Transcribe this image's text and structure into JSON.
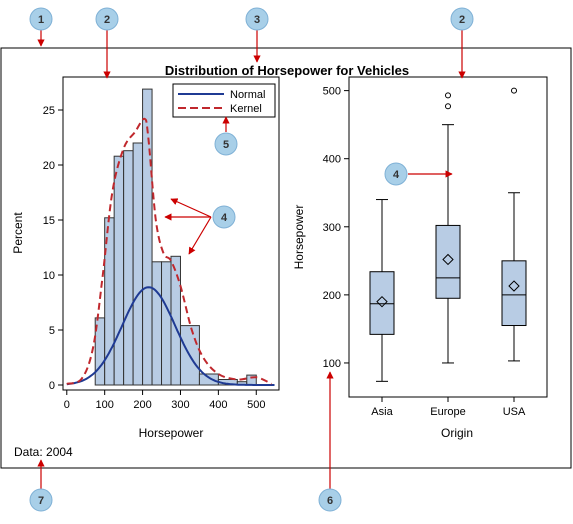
{
  "chart_data": [
    {
      "type": "bar",
      "title": "Distribution of Horsepower for Vehicles",
      "xlabel": "Horsepower",
      "ylabel": "Percent",
      "xlim": [
        -10,
        560
      ],
      "ylim": [
        0,
        28
      ],
      "xticks": [
        0,
        100,
        200,
        300,
        400,
        500
      ],
      "yticks": [
        0,
        5,
        10,
        15,
        20,
        25
      ],
      "bin_width": 50,
      "bins": [
        {
          "x0": 75,
          "x1": 100,
          "value": 6.1
        },
        {
          "x0": 100,
          "x1": 125,
          "value": 15.2
        },
        {
          "x0": 125,
          "x1": 150,
          "value": 20.8
        },
        {
          "x0": 150,
          "x1": 175,
          "value": 21.3
        },
        {
          "x0": 175,
          "x1": 200,
          "value": 22.0
        },
        {
          "x0": 200,
          "x1": 225,
          "value": 26.9
        },
        {
          "x0": 225,
          "x1": 250,
          "value": 11.2
        },
        {
          "x0": 250,
          "x1": 275,
          "value": 11.2
        },
        {
          "x0": 275,
          "x1": 300,
          "value": 11.7
        },
        {
          "x0": 300,
          "x1": 350,
          "value": 5.4
        },
        {
          "x0": 350,
          "x1": 400,
          "value": 1.0
        },
        {
          "x0": 400,
          "x1": 450,
          "value": 0.5
        },
        {
          "x0": 450,
          "x1": 475,
          "value": 0.3
        },
        {
          "x0": 475,
          "x1": 500,
          "value": 0.9
        }
      ],
      "series": [
        {
          "name": "Normal",
          "color": "#1f3a93",
          "style": "solid",
          "mean": 216,
          "sd": 70,
          "scale": 3900
        },
        {
          "name": "Kernel",
          "color": "#c0282d",
          "style": "dashed",
          "points": [
            [
              0,
              0.1
            ],
            [
              40,
              0.6
            ],
            [
              70,
              3.5
            ],
            [
              95,
              10
            ],
            [
              120,
              17.5
            ],
            [
              150,
              21.5
            ],
            [
              180,
              23
            ],
            [
              205,
              24.2
            ],
            [
              215,
              22.5
            ],
            [
              235,
              15
            ],
            [
              255,
              12
            ],
            [
              275,
              11.3
            ],
            [
              300,
              9
            ],
            [
              330,
              5
            ],
            [
              360,
              2.5
            ],
            [
              400,
              1
            ],
            [
              450,
              0.5
            ],
            [
              500,
              0.7
            ],
            [
              540,
              0.1
            ]
          ]
        }
      ],
      "legend": {
        "position": "top-right",
        "entries": [
          "Normal",
          "Kernel"
        ]
      },
      "bar_fill": "#b8cce4",
      "bar_stroke": "#333333"
    },
    {
      "type": "box",
      "xlabel": "Origin",
      "ylabel": "Horsepower",
      "categories": [
        "Asia",
        "Europe",
        "USA"
      ],
      "ylim": [
        50,
        520
      ],
      "yticks": [
        100,
        200,
        300,
        400,
        500
      ],
      "boxes": [
        {
          "category": "Asia",
          "min": 73,
          "q1": 142,
          "median": 187,
          "q3": 234,
          "max": 340,
          "mean": 190,
          "outliers": []
        },
        {
          "category": "Europe",
          "min": 100,
          "q1": 195,
          "median": 225,
          "q3": 302,
          "max": 450,
          "mean": 252,
          "outliers": [
            477,
            493
          ]
        },
        {
          "category": "USA",
          "min": 103,
          "q1": 155,
          "median": 200,
          "q3": 250,
          "max": 350,
          "mean": 213,
          "outliers": [
            500
          ]
        }
      ],
      "box_fill": "#b8cce4"
    }
  ],
  "footnote": "Data: 2004",
  "callouts": [
    {
      "num": "1"
    },
    {
      "num": "2"
    },
    {
      "num": "3"
    },
    {
      "num": "2"
    },
    {
      "num": "4"
    },
    {
      "num": "5"
    },
    {
      "num": "4"
    },
    {
      "num": "6"
    },
    {
      "num": "7"
    }
  ],
  "colors": {
    "callout_fill": "#a8cfe8",
    "arrow": "#cc0000"
  }
}
